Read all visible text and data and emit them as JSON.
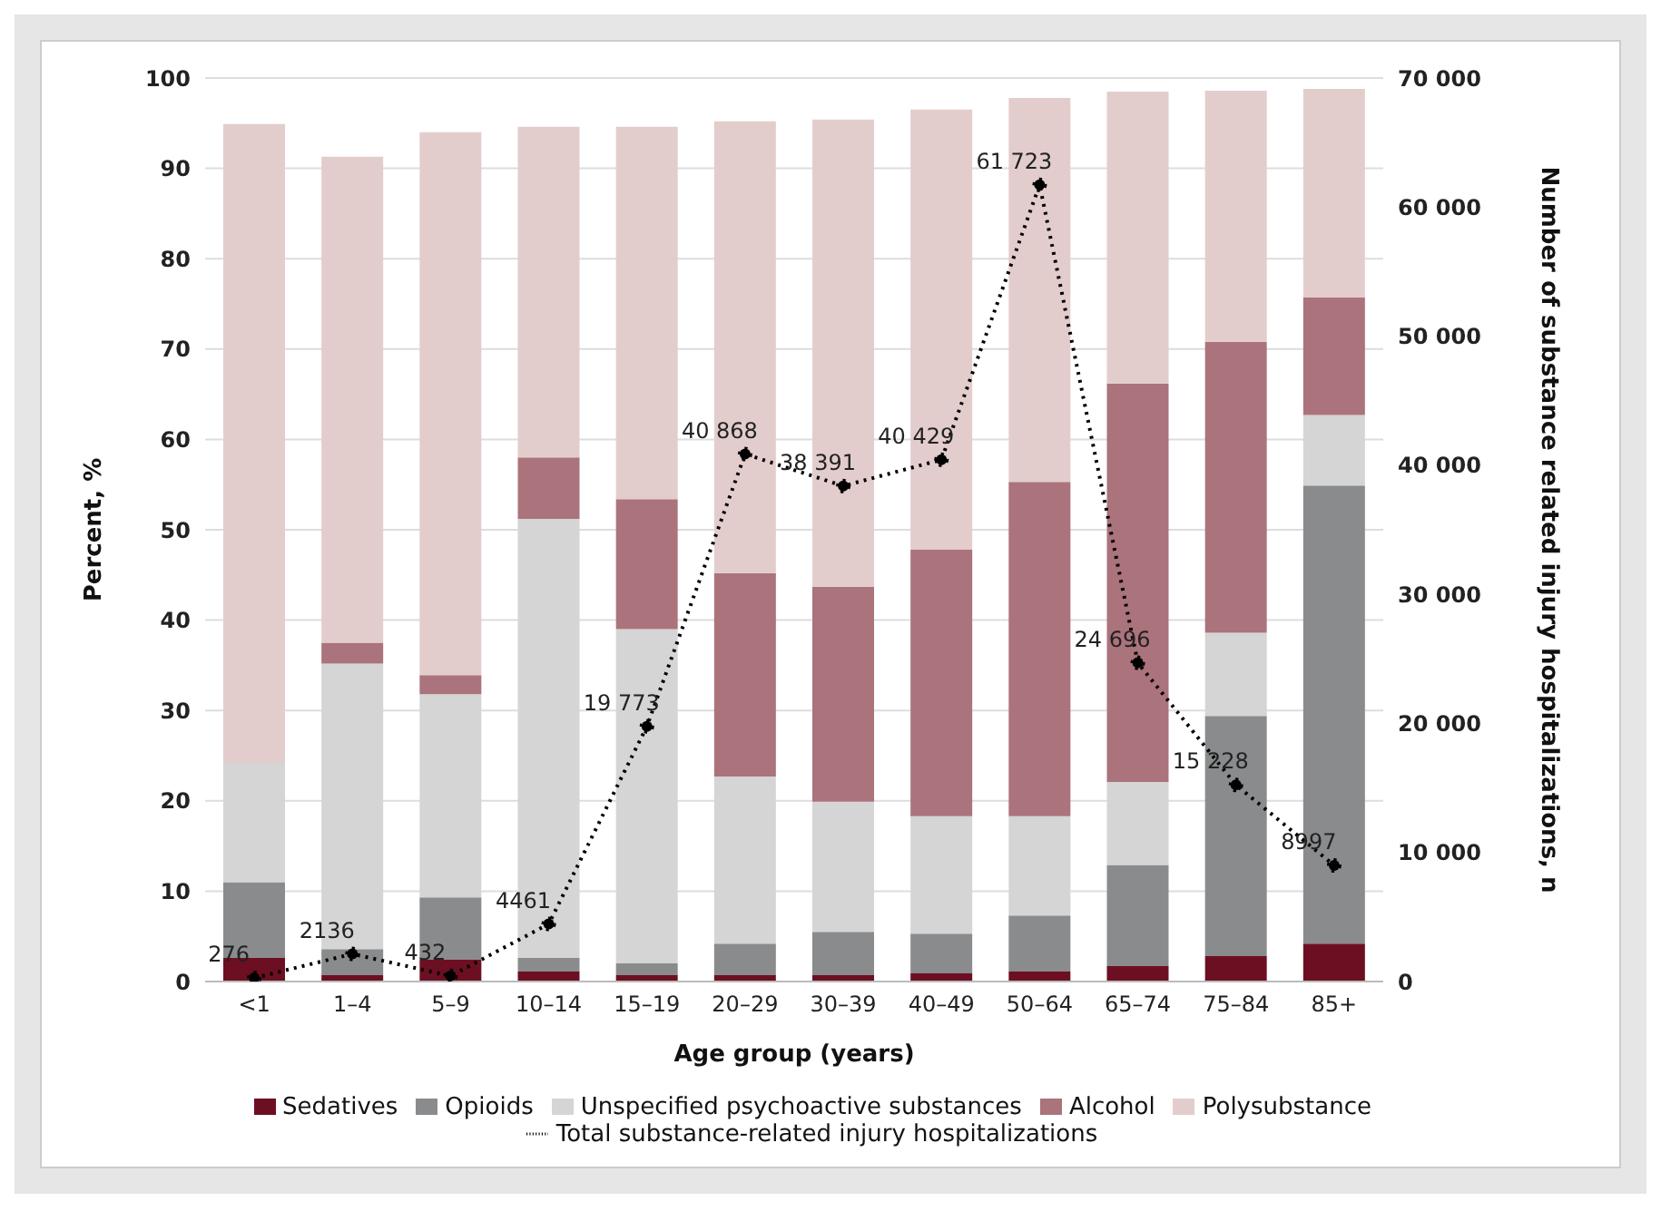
{
  "chart_data": {
    "type": "bar",
    "stacked": true,
    "xlabel": "Age group (years)",
    "ylabel": "Percent, %",
    "y2label": "Number of substance related injury hospitalizations, n",
    "categories": [
      "<1",
      "1–4",
      "5–9",
      "10–14",
      "15–19",
      "20–29",
      "30–39",
      "40–49",
      "50–64",
      "65–74",
      "75–84",
      "85+"
    ],
    "series": [
      {
        "name": "Sedatives",
        "color": "#6d0f22",
        "values": [
          2.6,
          0.7,
          2.4,
          1.1,
          0.7,
          0.7,
          0.7,
          0.9,
          1.1,
          1.7,
          2.8,
          4.2
        ]
      },
      {
        "name": "Opioids",
        "color": "#8a8b8d",
        "values": [
          8.4,
          2.9,
          6.9,
          1.5,
          1.3,
          3.5,
          4.8,
          4.4,
          6.2,
          11.2,
          26.6,
          50.7
        ]
      },
      {
        "name": "Unspecified psychoactive substances",
        "color": "#d4d5d4",
        "values": [
          13.2,
          31.6,
          22.5,
          48.6,
          37.0,
          18.5,
          14.4,
          13.0,
          11.0,
          9.2,
          9.2,
          7.8
        ]
      },
      {
        "name": "Alcohol",
        "color": "#ab737c",
        "values": [
          0,
          2.3,
          2.1,
          6.8,
          14.4,
          22.5,
          23.8,
          29.5,
          37.0,
          44.1,
          32.2,
          13.0
        ]
      },
      {
        "name": "Polysubstance",
        "color": "#e3cdcc",
        "values": [
          70.7,
          53.8,
          60.1,
          36.6,
          41.2,
          50.0,
          51.7,
          48.7,
          42.5,
          32.3,
          27.8,
          23.1
        ]
      },
      {
        "name": "Total substance-related injury hospitalizations",
        "type": "line",
        "axis": "y2",
        "color": "#000000",
        "values": [
          276,
          2136,
          432,
          4461,
          19773,
          40868,
          38391,
          40429,
          61723,
          24696,
          15228,
          8997
        ],
        "value_labels": [
          "276",
          "2136",
          "432",
          "4461",
          "19 773",
          "40 868",
          "38 391",
          "40 429",
          "61 723",
          "24 696",
          "15 228",
          "8997"
        ]
      }
    ],
    "ylim": [
      0,
      100
    ],
    "yticks": [
      0,
      10,
      20,
      30,
      40,
      50,
      60,
      70,
      80,
      90,
      100
    ],
    "y2lim": [
      0,
      70000
    ],
    "y2ticks": [
      0,
      {
        "value": 10000,
        "label": "10 000"
      },
      {
        "value": 20000,
        "label": "20 000"
      },
      {
        "value": 30000,
        "label": "30 000"
      },
      {
        "value": 40000,
        "label": "40 000"
      },
      {
        "value": 50000,
        "label": "50 000"
      },
      {
        "value": 60000,
        "label": "60 000"
      },
      {
        "value": 70000,
        "label": "70 000"
      }
    ],
    "grid": "y",
    "legend": "bottom",
    "marker": "circle",
    "line_style": "dotted"
  }
}
